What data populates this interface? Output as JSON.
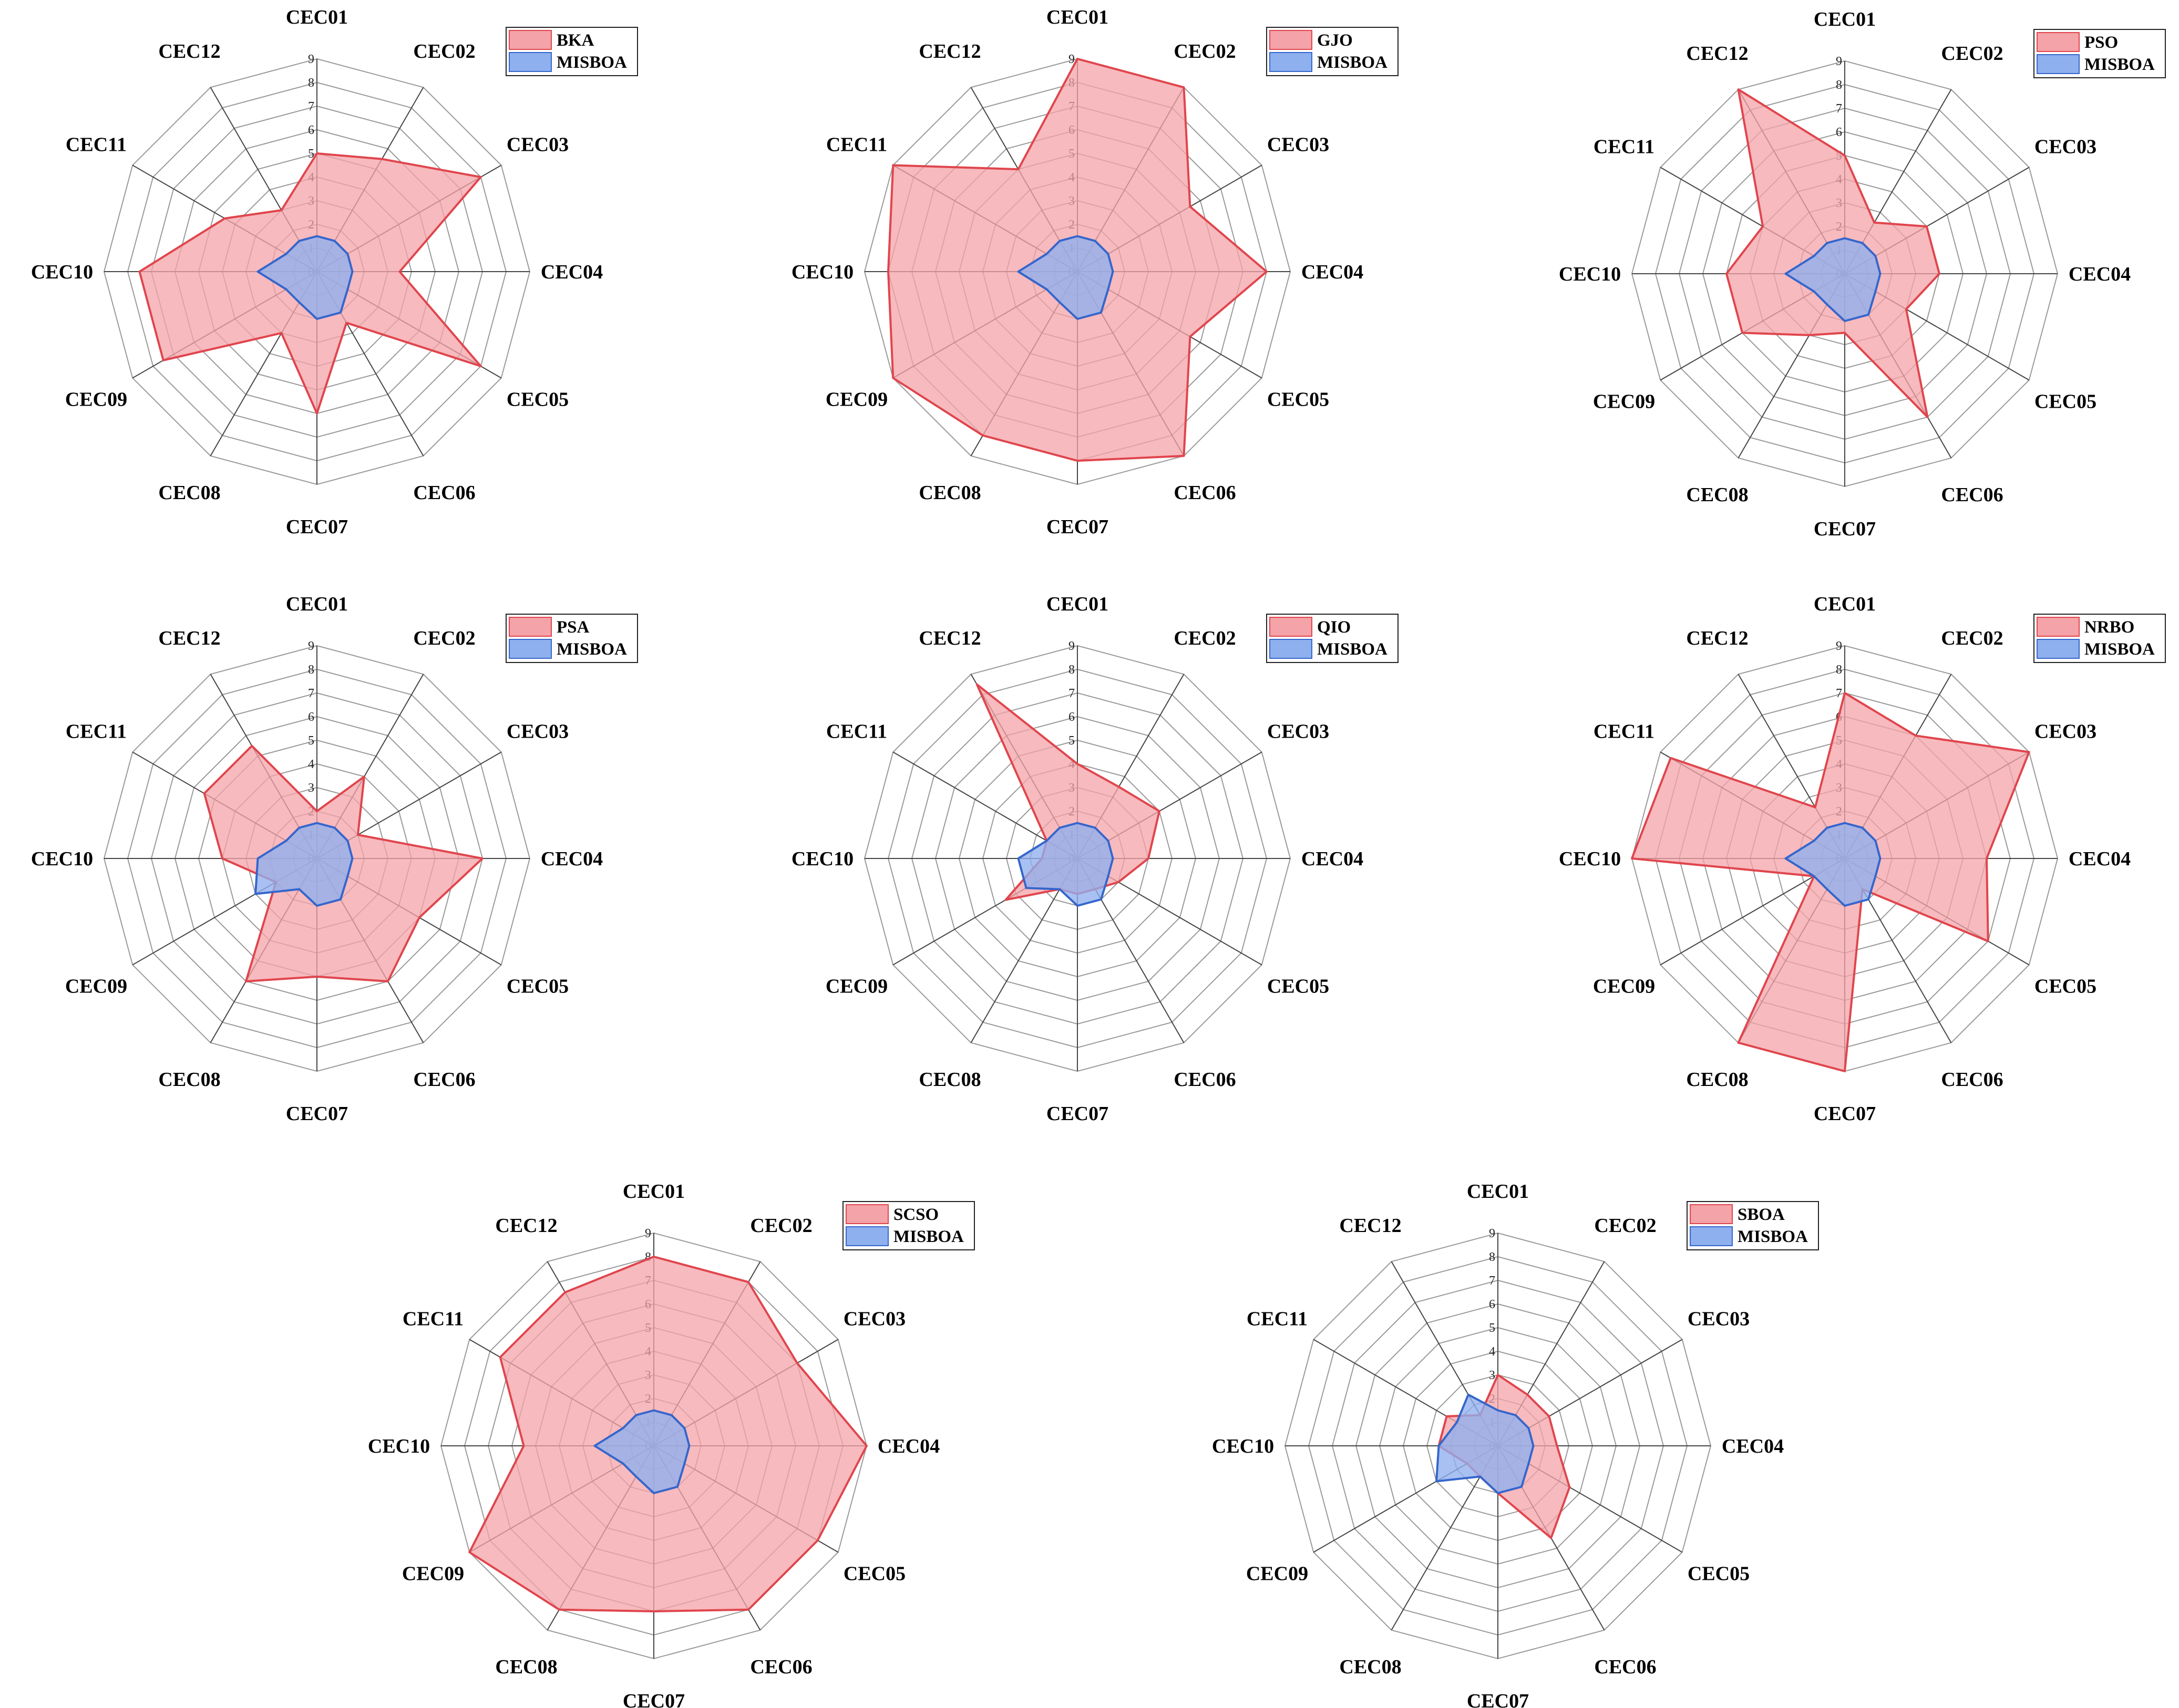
{
  "colors": {
    "competitor_fill": "#f4a3a8",
    "competitor_stroke": "#e0454d",
    "misboa_fill": "#8fb0ee",
    "misboa_stroke": "#3566cc",
    "grid": "#9a9a9a",
    "spoke": "#444444"
  },
  "chart_data": [
    {
      "type": "radar",
      "categories": [
        "CEC01",
        "CEC02",
        "CEC03",
        "CEC04",
        "CEC05",
        "CEC06",
        "CEC07",
        "CEC08",
        "CEC09",
        "CEC10",
        "CEC11",
        "CEC12"
      ],
      "ticks": [
        "0",
        "1",
        "2",
        "3",
        "4",
        "5",
        "6",
        "7",
        "8",
        "9"
      ],
      "rlim": [
        0,
        9
      ],
      "legend": "top-right",
      "series": [
        {
          "name": "BKA",
          "values": [
            5,
            5.5,
            8,
            3.5,
            8,
            2.5,
            6,
            3,
            7.5,
            7.5,
            4.5,
            3
          ]
        },
        {
          "name": "MISBOA",
          "values": [
            1.5,
            1.5,
            1.5,
            1.5,
            1.5,
            2,
            2,
            1.5,
            1.5,
            2.5,
            1.5,
            1.5
          ]
        }
      ]
    },
    {
      "type": "radar",
      "categories": [
        "CEC01",
        "CEC02",
        "CEC03",
        "CEC04",
        "CEC05",
        "CEC06",
        "CEC07",
        "CEC08",
        "CEC09",
        "CEC10",
        "CEC11",
        "CEC12"
      ],
      "ticks": [
        "0",
        "1",
        "2",
        "3",
        "4",
        "5",
        "6",
        "7",
        "8",
        "9"
      ],
      "rlim": [
        0,
        9
      ],
      "legend": "top-right",
      "series": [
        {
          "name": "GJO",
          "values": [
            9,
            9,
            5.5,
            8,
            5.5,
            9,
            8,
            8,
            9,
            8,
            9,
            5
          ]
        },
        {
          "name": "MISBOA",
          "values": [
            1.5,
            1.5,
            1.5,
            1.5,
            1.5,
            2,
            2,
            1.5,
            1.5,
            2.5,
            1.5,
            1.5
          ]
        }
      ]
    },
    {
      "type": "radar",
      "categories": [
        "CEC01",
        "CEC02",
        "CEC03",
        "CEC04",
        "CEC05",
        "CEC06",
        "CEC07",
        "CEC08",
        "CEC09",
        "CEC10",
        "CEC11",
        "CEC12"
      ],
      "ticks": [
        "0",
        "1",
        "2",
        "3",
        "4",
        "5",
        "6",
        "7",
        "8",
        "9"
      ],
      "rlim": [
        0,
        9
      ],
      "legend": "top-right",
      "series": [
        {
          "name": "PSO",
          "values": [
            5,
            2.5,
            4,
            4,
            3,
            7,
            2.5,
            3,
            5,
            5,
            4,
            9
          ]
        },
        {
          "name": "MISBOA",
          "values": [
            1.5,
            1.5,
            1.5,
            1.5,
            1.5,
            2,
            2,
            1.5,
            1.5,
            2.5,
            1.5,
            1.5
          ]
        }
      ]
    },
    {
      "type": "radar",
      "categories": [
        "CEC01",
        "CEC02",
        "CEC03",
        "CEC04",
        "CEC05",
        "CEC06",
        "CEC07",
        "CEC08",
        "CEC09",
        "CEC10",
        "CEC11",
        "CEC12"
      ],
      "ticks": [
        "0",
        "1",
        "2",
        "3",
        "4",
        "5",
        "6",
        "7",
        "8",
        "9"
      ],
      "rlim": [
        0,
        9
      ],
      "legend": "top-right",
      "series": [
        {
          "name": "PSA",
          "values": [
            2,
            4,
            2,
            7,
            5,
            6,
            5,
            6,
            2,
            4,
            5.5,
            5.5
          ]
        },
        {
          "name": "MISBOA",
          "values": [
            1.5,
            1.5,
            1.5,
            1.5,
            1.5,
            2,
            2,
            1.5,
            3,
            2.5,
            1.5,
            1.5
          ]
        }
      ]
    },
    {
      "type": "radar",
      "categories": [
        "CEC01",
        "CEC02",
        "CEC03",
        "CEC04",
        "CEC05",
        "CEC06",
        "CEC07",
        "CEC08",
        "CEC09",
        "CEC10",
        "CEC11",
        "CEC12"
      ],
      "ticks": [
        "0",
        "1",
        "2",
        "3",
        "4",
        "5",
        "6",
        "7",
        "8",
        "9"
      ],
      "rlim": [
        0,
        9
      ],
      "legend": "top-right",
      "series": [
        {
          "name": "QIO",
          "values": [
            4,
            3.5,
            4,
            3,
            2,
            1.5,
            1.5,
            1.5,
            3.5,
            1.5,
            1.5,
            8.5
          ]
        },
        {
          "name": "MISBOA",
          "values": [
            1.5,
            1.5,
            1.5,
            1.5,
            1.5,
            2,
            2,
            1.5,
            2.5,
            2.5,
            1.5,
            1.5
          ]
        }
      ]
    },
    {
      "type": "radar",
      "categories": [
        "CEC01",
        "CEC02",
        "CEC03",
        "CEC04",
        "CEC05",
        "CEC06",
        "CEC07",
        "CEC08",
        "CEC09",
        "CEC10",
        "CEC11",
        "CEC12"
      ],
      "ticks": [
        "0",
        "1",
        "2",
        "3",
        "4",
        "5",
        "6",
        "7",
        "8",
        "9"
      ],
      "rlim": [
        0,
        9
      ],
      "legend": "top-right",
      "series": [
        {
          "name": "NRBO",
          "values": [
            7,
            6,
            9,
            6,
            7,
            1.5,
            9,
            9,
            1.5,
            9,
            8.5,
            2.5
          ]
        },
        {
          "name": "MISBOA",
          "values": [
            1.5,
            1.5,
            1.5,
            1.5,
            1.5,
            2,
            2,
            1.5,
            1.5,
            2.5,
            1.5,
            1.5
          ]
        }
      ]
    },
    {
      "type": "radar",
      "categories": [
        "CEC01",
        "CEC02",
        "CEC03",
        "CEC04",
        "CEC05",
        "CEC06",
        "CEC07",
        "CEC08",
        "CEC09",
        "CEC10",
        "CEC11",
        "CEC12"
      ],
      "ticks": [
        "0",
        "1",
        "2",
        "3",
        "4",
        "5",
        "6",
        "7",
        "8",
        "9"
      ],
      "rlim": [
        0,
        9
      ],
      "legend": "top-right",
      "series": [
        {
          "name": "SCSO",
          "values": [
            8,
            8,
            7,
            9,
            8,
            8,
            7,
            8,
            9,
            5.5,
            7.5,
            7.5
          ]
        },
        {
          "name": "MISBOA",
          "values": [
            1.5,
            1.5,
            1.5,
            1.5,
            1.5,
            2,
            2,
            1.5,
            1.5,
            2.5,
            1.5,
            1.5
          ]
        }
      ]
    },
    {
      "type": "radar",
      "categories": [
        "CEC01",
        "CEC02",
        "CEC03",
        "CEC04",
        "CEC05",
        "CEC06",
        "CEC07",
        "CEC08",
        "CEC09",
        "CEC10",
        "CEC11",
        "CEC12"
      ],
      "ticks": [
        "0",
        "1",
        "2",
        "3",
        "4",
        "5",
        "6",
        "7",
        "8",
        "9"
      ],
      "rlim": [
        0,
        9
      ],
      "legend": "top-right",
      "series": [
        {
          "name": "SBOA",
          "values": [
            3,
            2.5,
            2.5,
            2.5,
            3.5,
            4.5,
            2,
            1.5,
            1.5,
            2.5,
            2.5,
            1.5
          ]
        },
        {
          "name": "MISBOA",
          "values": [
            1.5,
            1.5,
            1.5,
            1.5,
            1.5,
            2,
            2,
            1.5,
            3,
            2.5,
            2,
            2.5
          ]
        }
      ]
    }
  ]
}
